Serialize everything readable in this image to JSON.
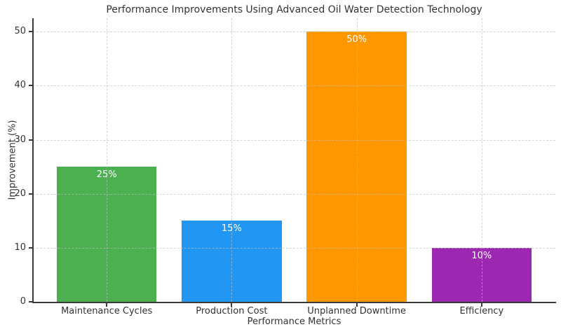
{
  "chart_data": {
    "type": "bar",
    "title": "Performance Improvements Using Advanced Oil Water Detection Technology",
    "xlabel": "Performance Metrics",
    "ylabel": "Improvement (%)",
    "categories": [
      "Maintenance Cycles",
      "Production Cost",
      "Unplanned Downtime",
      "Efficiency"
    ],
    "values": [
      25,
      15,
      50,
      10
    ],
    "bar_labels": [
      "25%",
      "15%",
      "50%",
      "10%"
    ],
    "bar_colors": [
      "#4caf50",
      "#2196f3",
      "#ff9800",
      "#9c27b0"
    ],
    "bar_label_color": "#ffffff",
    "y_ticks": [
      0,
      10,
      20,
      30,
      40,
      50
    ],
    "ylim": [
      0,
      52.5
    ],
    "grid": "dashed, horizontal and vertical, drawn above bars",
    "legend": "none",
    "spine_color": "#3a3a3a",
    "text_color": "#333333"
  }
}
